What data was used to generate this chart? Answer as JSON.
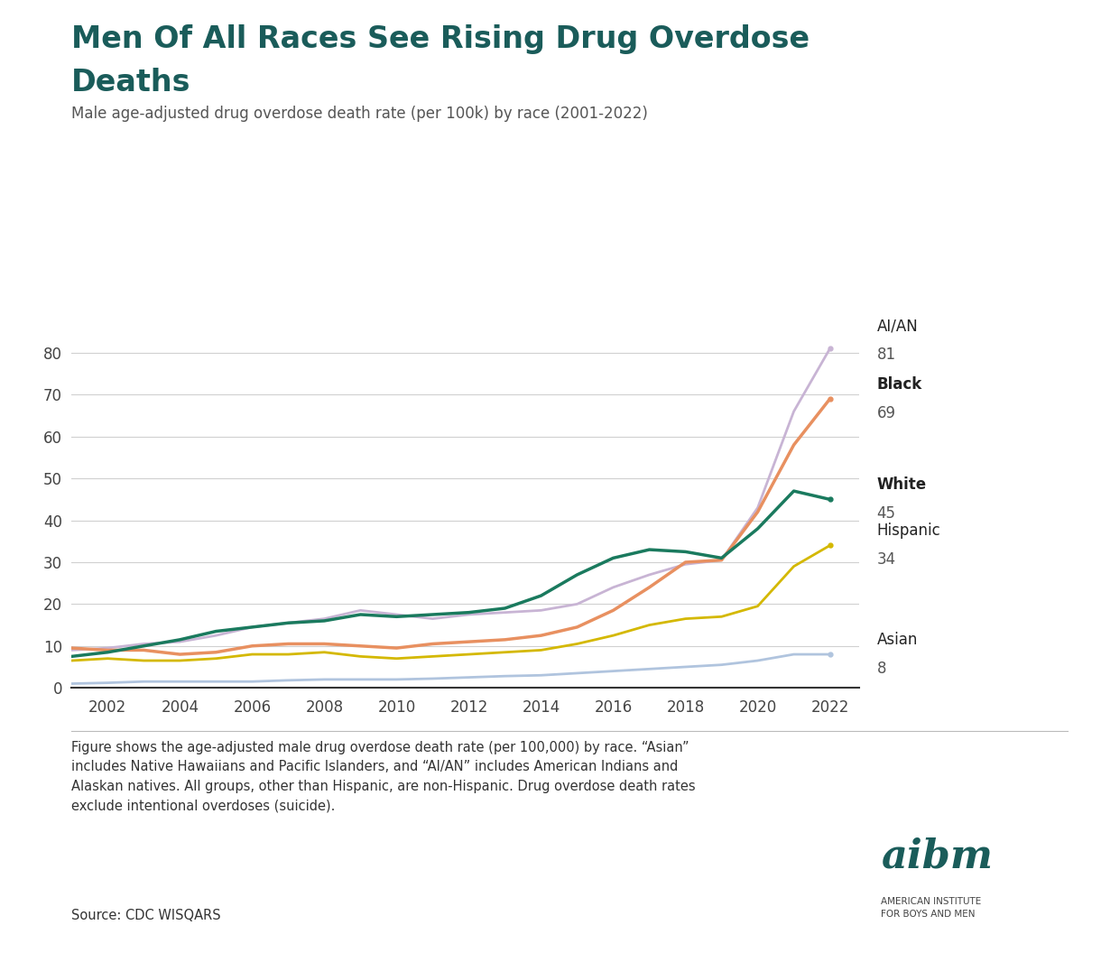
{
  "title_line1": "Men Of All Races See Rising Drug Overdose",
  "title_line2": "Deaths",
  "subtitle": "Male age-adjusted drug overdose death rate (per 100k) by race (2001-2022)",
  "years": [
    2001,
    2002,
    2003,
    2004,
    2005,
    2006,
    2007,
    2008,
    2009,
    2010,
    2011,
    2012,
    2013,
    2014,
    2015,
    2016,
    2017,
    2018,
    2019,
    2020,
    2021,
    2022
  ],
  "series": {
    "AI/AN": {
      "values": [
        9.0,
        9.5,
        10.5,
        11.0,
        12.5,
        14.5,
        15.5,
        16.5,
        18.5,
        17.5,
        16.5,
        17.5,
        18.0,
        18.5,
        20.0,
        24.0,
        27.0,
        29.5,
        30.5,
        43.0,
        66.0,
        81.0
      ],
      "color": "#c8b4d4",
      "label_value": "81",
      "bold": false
    },
    "Black": {
      "values": [
        9.5,
        9.0,
        9.0,
        8.0,
        8.5,
        10.0,
        10.5,
        10.5,
        10.0,
        9.5,
        10.5,
        11.0,
        11.5,
        12.5,
        14.5,
        18.5,
        24.0,
        30.0,
        30.5,
        42.0,
        58.0,
        69.0
      ],
      "color": "#e89060",
      "label_value": "69",
      "bold": true
    },
    "White": {
      "values": [
        7.5,
        8.5,
        10.0,
        11.5,
        13.5,
        14.5,
        15.5,
        16.0,
        17.5,
        17.0,
        17.5,
        18.0,
        19.0,
        22.0,
        27.0,
        31.0,
        33.0,
        32.5,
        31.0,
        38.0,
        47.0,
        45.0
      ],
      "color": "#1a7a5e",
      "label_value": "45",
      "bold": true
    },
    "Hispanic": {
      "values": [
        6.5,
        7.0,
        6.5,
        6.5,
        7.0,
        8.0,
        8.0,
        8.5,
        7.5,
        7.0,
        7.5,
        8.0,
        8.5,
        9.0,
        10.5,
        12.5,
        15.0,
        16.5,
        17.0,
        19.5,
        29.0,
        34.0
      ],
      "color": "#d4b800",
      "label_value": "34",
      "bold": false
    },
    "Asian": {
      "values": [
        1.0,
        1.2,
        1.5,
        1.5,
        1.5,
        1.5,
        1.8,
        2.0,
        2.0,
        2.0,
        2.2,
        2.5,
        2.8,
        3.0,
        3.5,
        4.0,
        4.5,
        5.0,
        5.5,
        6.5,
        8.0,
        8.0
      ],
      "color": "#b0c4de",
      "label_value": "8",
      "bold": false
    }
  },
  "ylim": [
    0,
    85
  ],
  "yticks": [
    0,
    10,
    20,
    30,
    40,
    50,
    60,
    70,
    80
  ],
  "background_color": "#ffffff",
  "footnote_line1": "Figure shows the age-adjusted male drug overdose death rate (per 100,000) by race. “Asian”",
  "footnote_line2": "includes Native Hawaiians and Pacific Islanders, and “AI/AN” includes American Indians and",
  "footnote_line3": "Alaskan natives. All groups, other than Hispanic, are non-Hispanic. Drug overdose death rates",
  "footnote_line4": "exclude intentional overdoses (suicide).",
  "source": "Source: CDC WISQARS",
  "title_color": "#1a5c5a",
  "subtitle_color": "#555555",
  "axis_color": "#444444",
  "grid_color": "#d0d0d0",
  "label_order": [
    "AI/AN",
    "Black",
    "White",
    "Hispanic",
    "Asian"
  ],
  "label_offsets": {
    "AI/AN": 0,
    "Black": 0,
    "White": 0,
    "Hispanic": 0,
    "Asian": 0
  }
}
